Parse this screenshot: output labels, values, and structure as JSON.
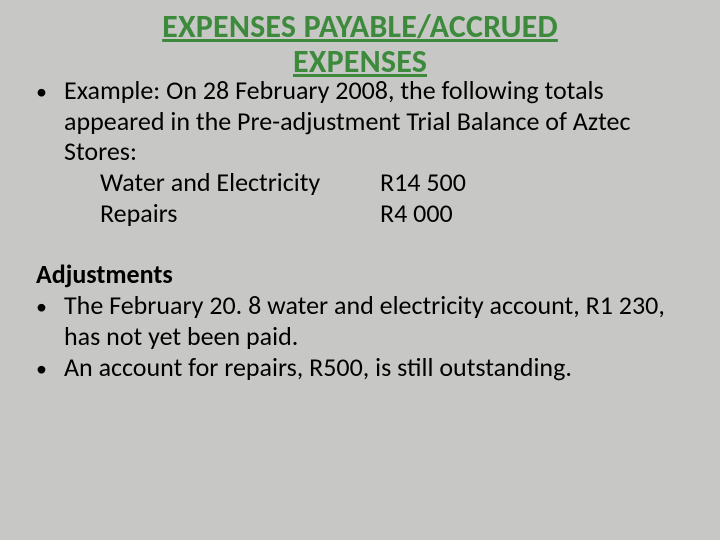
{
  "colors": {
    "background": "#c7c8c5",
    "title": "#3d8a3d",
    "text": "#000000"
  },
  "typography": {
    "title_fontsize": 32,
    "body_fontsize": 26,
    "font_family": "Calibri"
  },
  "title": {
    "line1": "EXPENSES PAYABLE/ACCRUED",
    "line2": "EXPENSES"
  },
  "example": {
    "intro": "Example: On 28 February 2008, the following totals appeared in the Pre-adjustment Trial Balance of Aztec Stores:",
    "items": [
      {
        "label": "Water and Electricity",
        "amount": "R14 500"
      },
      {
        "label": "Repairs",
        "amount": "R4 000"
      }
    ]
  },
  "adjustments": {
    "heading": "Adjustments",
    "bullets": [
      "The February 20. 8 water and electricity account, R1 230, has not yet been paid.",
      "An account for repairs, R500, is still outstanding."
    ]
  }
}
